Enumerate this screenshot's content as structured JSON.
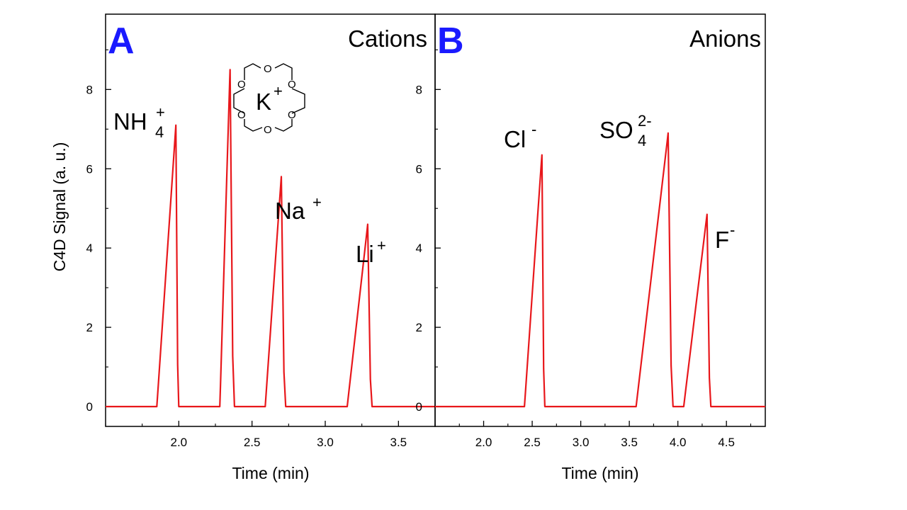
{
  "chart_data": [
    {
      "type": "line",
      "panel_letter": "A",
      "title": "Cations",
      "xlabel": "Time (min)",
      "ylabel": "C4D Signal (a. u.)",
      "xlim": [
        1.5,
        3.75
      ],
      "ylim": [
        -0.5,
        9.9
      ],
      "xticks": [
        2.0,
        2.5,
        3.0,
        3.5
      ],
      "xtick_labels": [
        "2.0",
        "2.5",
        "3.0",
        "3.5"
      ],
      "yticks": [
        0,
        2,
        4,
        6,
        8
      ],
      "ytick_labels": [
        "0",
        "2",
        "4",
        "6",
        "8"
      ],
      "color": "#e8171b",
      "series": [
        {
          "peaks": [
            {
              "label": "NH",
              "sub": "4",
              "sup": "+",
              "start": 1.85,
              "apex": 1.98,
              "end": 2.0,
              "height": 7.1
            },
            {
              "label": "K",
              "sup": "+",
              "start": 2.28,
              "apex": 2.35,
              "end": 2.38,
              "height": 8.5
            },
            {
              "label": "Na",
              "sup": "+",
              "start": 2.59,
              "apex": 2.7,
              "end": 2.73,
              "height": 5.8
            },
            {
              "label": "Li",
              "sup": "+",
              "start": 3.15,
              "apex": 3.29,
              "end": 3.32,
              "height": 4.6
            }
          ]
        }
      ],
      "crown_ether": {
        "atom": "O",
        "cation": "K",
        "cation_sup": "+"
      }
    },
    {
      "type": "line",
      "panel_letter": "B",
      "title": "Anions",
      "xlabel": "Time (min)",
      "ylabel": "",
      "xlim": [
        1.5,
        4.9
      ],
      "ylim": [
        -0.5,
        9.9
      ],
      "xticks": [
        2.0,
        2.5,
        3.0,
        3.5,
        4.0,
        4.5
      ],
      "xtick_labels": [
        "2.0",
        "2.5",
        "3.0",
        "3.5",
        "4.0",
        "4.5"
      ],
      "yticks": [
        0,
        2,
        4,
        6,
        8
      ],
      "ytick_labels": [
        "0",
        "2",
        "4",
        "6",
        "8"
      ],
      "color": "#e8171b",
      "series": [
        {
          "peaks": [
            {
              "label": "Cl",
              "sup": "-",
              "start": 2.42,
              "apex": 2.6,
              "end": 2.63,
              "height": 6.35
            },
            {
              "label": "SO",
              "sub": "4",
              "sup": "2-",
              "start": 3.57,
              "apex": 3.9,
              "end": 3.95,
              "height": 6.9
            },
            {
              "label": "F",
              "sup": "-",
              "start": 4.06,
              "apex": 4.3,
              "end": 4.34,
              "height": 4.85
            }
          ]
        }
      ]
    }
  ]
}
